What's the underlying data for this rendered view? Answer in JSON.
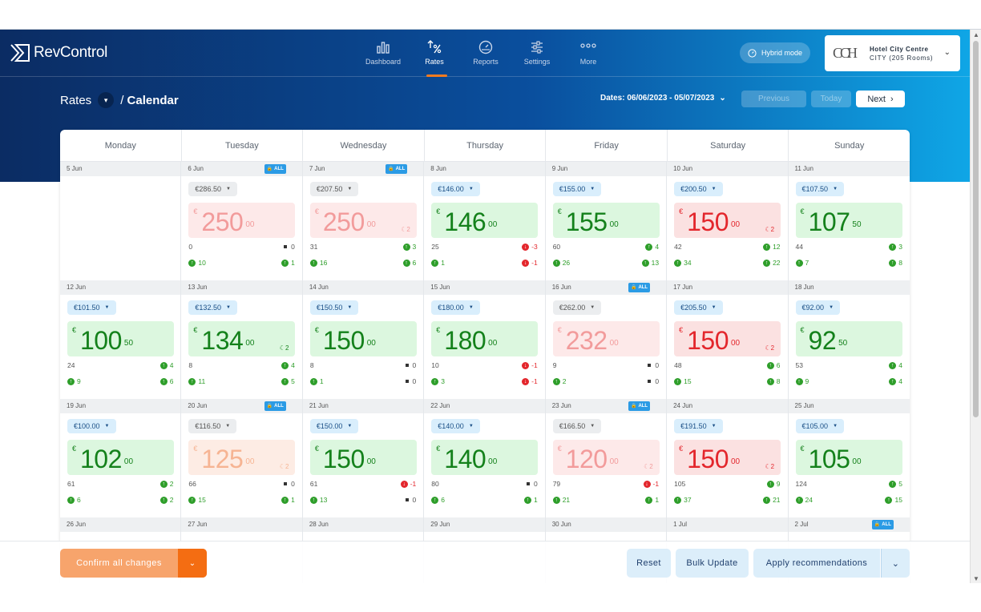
{
  "app": {
    "name": "RevControl"
  },
  "nav": [
    {
      "label": "Dashboard",
      "icon": "bar-chart-icon",
      "active": false
    },
    {
      "label": "Rates",
      "icon": "percent-icon",
      "active": true
    },
    {
      "label": "Reports",
      "icon": "gauge-icon",
      "active": false
    },
    {
      "label": "Settings",
      "icon": "sliders-icon",
      "active": false
    },
    {
      "label": "More",
      "icon": "more-dots-icon",
      "active": false
    }
  ],
  "hybrid": {
    "label": "Hybrid mode"
  },
  "hotel": {
    "logo": "CCH",
    "name": "Hotel City Centre",
    "sub": "CITY (205 Rooms)"
  },
  "breadcrumb": {
    "section": "Rates",
    "separator": "/",
    "page": "Calendar"
  },
  "dates": {
    "label": "Dates: 06/06/2023 - 05/07/2023"
  },
  "buttons": {
    "previous": "Previous",
    "today": "Today",
    "next": "Next"
  },
  "weekdays": [
    "Monday",
    "Tuesday",
    "Wednesday",
    "Thursday",
    "Friday",
    "Saturday",
    "Sunday"
  ],
  "lock_label": "ALL",
  "weeks": [
    [
      {
        "date": "5 Jun",
        "empty": true
      },
      {
        "date": "6 Jun",
        "lock": true,
        "rec": "€286.50",
        "pill": "grey",
        "int": "250",
        "dec": "00",
        "color": "pr",
        "moon": "",
        "a_left": "0",
        "a_right": "0",
        "a_icon": "sq",
        "b_left": "10",
        "b_right": "1",
        "b_icon": "up"
      },
      {
        "date": "7 Jun",
        "lock": true,
        "rec": "€207.50",
        "pill": "grey",
        "int": "250",
        "dec": "00",
        "color": "pr",
        "moon": "2",
        "a_left": "31",
        "a_right": "3",
        "a_icon": "up",
        "b_left": "16",
        "b_right": "6",
        "b_icon": "up"
      },
      {
        "date": "8 Jun",
        "rec": "€146.00",
        "pill": "blue",
        "int": "146",
        "dec": "00",
        "color": "g",
        "moon": "",
        "a_left": "25",
        "a_right": "-3",
        "a_icon": "dn",
        "b_left": "1",
        "b_right": "-1",
        "b_icon": "dn"
      },
      {
        "date": "9 Jun",
        "rec": "€155.00",
        "pill": "blue",
        "int": "155",
        "dec": "00",
        "color": "g",
        "moon": "",
        "a_left": "60",
        "a_right": "4",
        "a_icon": "up",
        "b_left": "26",
        "b_right": "13",
        "b_icon": "up"
      },
      {
        "date": "10 Jun",
        "rec": "€200.50",
        "pill": "blue",
        "int": "150",
        "dec": "00",
        "color": "r",
        "moon": "2",
        "a_left": "42",
        "a_right": "12",
        "a_icon": "up",
        "b_left": "34",
        "b_right": "22",
        "b_icon": "up"
      },
      {
        "date": "11 Jun",
        "rec": "€107.50",
        "pill": "blue",
        "int": "107",
        "dec": "50",
        "color": "g",
        "moon": "",
        "a_left": "44",
        "a_right": "3",
        "a_icon": "up",
        "b_left": "7",
        "b_right": "8",
        "b_icon": "up"
      }
    ],
    [
      {
        "date": "12 Jun",
        "rec": "€101.50",
        "pill": "blue",
        "int": "100",
        "dec": "50",
        "color": "g",
        "moon": "",
        "a_left": "24",
        "a_right": "4",
        "a_icon": "up",
        "b_left": "9",
        "b_right": "6",
        "b_icon": "up"
      },
      {
        "date": "13 Jun",
        "rec": "€132.50",
        "pill": "blue",
        "int": "134",
        "dec": "00",
        "color": "g",
        "moon": "2",
        "a_left": "8",
        "a_right": "4",
        "a_icon": "up",
        "b_left": "11",
        "b_right": "5",
        "b_icon": "up"
      },
      {
        "date": "14 Jun",
        "rec": "€150.50",
        "pill": "blue",
        "int": "150",
        "dec": "00",
        "color": "g",
        "moon": "",
        "a_left": "8",
        "a_right": "0",
        "a_icon": "sq",
        "b_left": "1",
        "b_right": "0",
        "b_icon": "sq"
      },
      {
        "date": "15 Jun",
        "rec": "€180.00",
        "pill": "blue",
        "int": "180",
        "dec": "00",
        "color": "g",
        "moon": "",
        "a_left": "10",
        "a_right": "-1",
        "a_icon": "dn",
        "b_left": "3",
        "b_right": "-1",
        "b_icon": "dn"
      },
      {
        "date": "16 Jun",
        "lock": true,
        "rec": "€262.00",
        "pill": "grey",
        "int": "232",
        "dec": "00",
        "color": "pr",
        "moon": "",
        "a_left": "9",
        "a_right": "0",
        "a_icon": "sq",
        "b_left": "2",
        "b_right": "0",
        "b_icon": "sq"
      },
      {
        "date": "17 Jun",
        "rec": "€205.50",
        "pill": "blue",
        "int": "150",
        "dec": "00",
        "color": "r",
        "moon": "2",
        "a_left": "48",
        "a_right": "6",
        "a_icon": "up",
        "b_left": "15",
        "b_right": "8",
        "b_icon": "up"
      },
      {
        "date": "18 Jun",
        "rec": "€92.00",
        "pill": "blue",
        "int": "92",
        "dec": "50",
        "color": "g",
        "moon": "",
        "a_left": "53",
        "a_right": "4",
        "a_icon": "up",
        "b_left": "9",
        "b_right": "4",
        "b_icon": "up"
      }
    ],
    [
      {
        "date": "19 Jun",
        "rec": "€100.00",
        "pill": "blue",
        "int": "102",
        "dec": "00",
        "color": "g",
        "moon": "",
        "a_left": "61",
        "a_right": "2",
        "a_icon": "up",
        "b_left": "6",
        "b_right": "2",
        "b_icon": "up"
      },
      {
        "date": "20 Jun",
        "lock": true,
        "rec": "€116.50",
        "pill": "grey",
        "int": "125",
        "dec": "00",
        "color": "po",
        "moon": "2",
        "a_left": "66",
        "a_right": "0",
        "a_icon": "sq",
        "b_left": "15",
        "b_right": "1",
        "b_icon": "up"
      },
      {
        "date": "21 Jun",
        "rec": "€150.00",
        "pill": "blue",
        "int": "150",
        "dec": "00",
        "color": "g",
        "moon": "",
        "a_left": "61",
        "a_right": "-1",
        "a_icon": "dn",
        "b_left": "13",
        "b_right": "0",
        "b_icon": "sq"
      },
      {
        "date": "22 Jun",
        "rec": "€140.00",
        "pill": "blue",
        "int": "140",
        "dec": "00",
        "color": "g",
        "moon": "",
        "a_left": "80",
        "a_right": "0",
        "a_icon": "sq",
        "b_left": "6",
        "b_right": "1",
        "b_icon": "up"
      },
      {
        "date": "23 Jun",
        "lock": true,
        "rec": "€166.50",
        "pill": "grey",
        "int": "120",
        "dec": "00",
        "color": "pr",
        "moon": "2",
        "a_left": "79",
        "a_right": "-1",
        "a_icon": "dn",
        "b_left": "21",
        "b_right": "1",
        "b_icon": "up"
      },
      {
        "date": "24 Jun",
        "rec": "€191.50",
        "pill": "blue",
        "int": "150",
        "dec": "00",
        "color": "r",
        "moon": "2",
        "a_left": "105",
        "a_right": "9",
        "a_icon": "up",
        "b_left": "37",
        "b_right": "21",
        "b_icon": "up"
      },
      {
        "date": "25 Jun",
        "rec": "€105.00",
        "pill": "blue",
        "int": "105",
        "dec": "00",
        "color": "g",
        "moon": "",
        "a_left": "124",
        "a_right": "5",
        "a_icon": "up",
        "b_left": "24",
        "b_right": "15",
        "b_icon": "up"
      }
    ],
    [
      {
        "date": "26 Jun",
        "partial": true
      },
      {
        "date": "27 Jun",
        "partial": true
      },
      {
        "date": "28 Jun",
        "partial": true
      },
      {
        "date": "29 Jun",
        "partial": true
      },
      {
        "date": "30 Jun",
        "partial": true
      },
      {
        "date": "1 Jul",
        "partial": true
      },
      {
        "date": "2 Jul",
        "partial": true,
        "lock": true
      }
    ]
  ],
  "footer": {
    "confirm": "Confirm all changes",
    "reset": "Reset",
    "bulk": "Bulk Update",
    "apply": "Apply recommendations"
  },
  "colors": {
    "accent": "#f47b20",
    "primary": "#0b2c63",
    "green": "#14811b",
    "red": "#e3262c"
  }
}
